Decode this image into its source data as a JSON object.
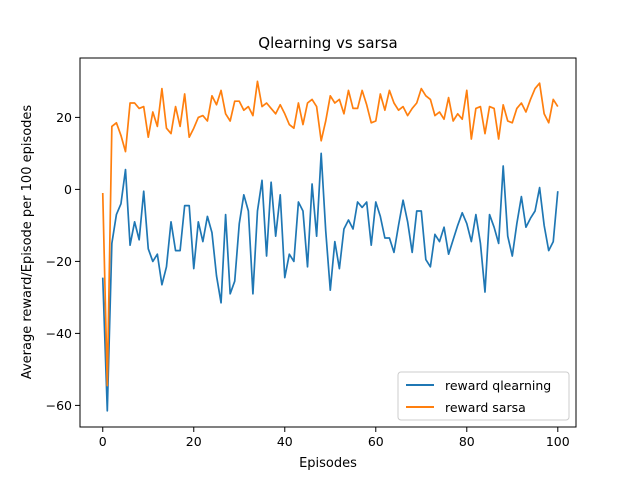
{
  "chart_data": {
    "type": "line",
    "title": "Qlearning vs sarsa",
    "xlabel": "Episodes",
    "ylabel": "Average reward/Episode per 100 episodes",
    "xlim": [
      -5,
      104
    ],
    "ylim": [
      -66,
      36.5
    ],
    "xticks": [
      0,
      20,
      40,
      60,
      80,
      100
    ],
    "yticks": [
      -60,
      -40,
      -20,
      0,
      20
    ],
    "legend_position": "lower-right",
    "grid": false,
    "series": [
      {
        "name": "reward qlearning",
        "color": "#1f77b4",
        "values": [
          -24.5,
          -61.5,
          -15,
          -7,
          -4,
          5.5,
          -15.5,
          -9,
          -14,
          -0.5,
          -16.5,
          -20,
          -18,
          -26.5,
          -21.5,
          -9,
          -17,
          -17,
          -4.5,
          -4.5,
          -22,
          -9,
          -14.5,
          -7.5,
          -12,
          -24,
          -31.5,
          -7,
          -29,
          -25.5,
          -9.5,
          -1.5,
          -6,
          -29,
          -6,
          2.5,
          -18.5,
          2,
          -13,
          -1.5,
          -24.5,
          -18,
          -20,
          -3.5,
          -6,
          -21.5,
          1.5,
          -13,
          10,
          -11.5,
          -28,
          -14.5,
          -22,
          -11,
          -8.5,
          -11,
          -3.5,
          -5,
          -3.5,
          -15.5,
          -3.5,
          -7.5,
          -13.5,
          -13.5,
          -17.5,
          -10,
          -3,
          -9,
          -17.5,
          -6,
          -6,
          -19.5,
          -21.5,
          -12.5,
          -14.5,
          -10.5,
          -18,
          -14,
          -10,
          -6.5,
          -9.5,
          -14.5,
          -7,
          -15,
          -28.5,
          -7,
          -10.5,
          -15,
          6.5,
          -13,
          -18.5,
          -9.5,
          -2,
          -10.5,
          -8,
          -6,
          0.5,
          -10,
          -17,
          -14.5,
          -0.5
        ],
        "note": ""
      },
      {
        "name": "reward sarsa",
        "color": "#ff7f0e",
        "values": [
          -1,
          -54.5,
          17.5,
          18.5,
          15,
          10.5,
          24,
          24,
          22.5,
          23,
          14.5,
          21.5,
          17.5,
          28,
          17,
          15.5,
          23,
          17.5,
          26.5,
          14.5,
          17,
          20,
          20.5,
          19,
          26,
          23.5,
          27.5,
          21,
          19,
          24.5,
          24.5,
          22,
          23,
          20.5,
          30,
          23,
          24,
          22.5,
          21,
          23.5,
          21,
          18,
          17,
          24,
          18,
          24,
          25,
          23,
          13.5,
          19,
          26,
          24,
          25,
          21,
          27.5,
          22.5,
          22.5,
          27.5,
          23.5,
          18.5,
          19,
          26.5,
          22,
          27.5,
          24,
          22,
          23,
          20.5,
          22.5,
          24,
          28,
          26,
          25,
          20.5,
          21.5,
          19.5,
          25.5,
          19,
          21,
          19.5,
          27.5,
          14,
          22.5,
          23,
          15.5,
          23,
          22.5,
          14,
          23.5,
          19,
          18.5,
          22.5,
          24,
          21.5,
          25,
          28,
          29.5,
          21,
          18.5,
          25,
          23
        ]
      }
    ]
  }
}
